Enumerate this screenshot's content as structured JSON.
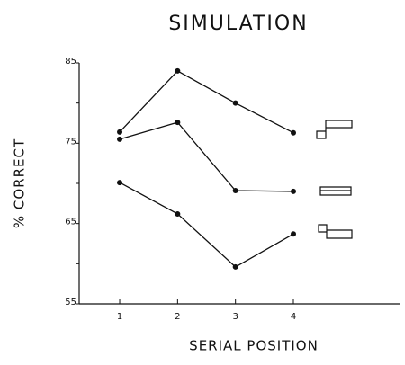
{
  "chart_data": {
    "type": "line",
    "title": "SIMULATION",
    "x_label": "SERIAL POSITION",
    "y_label": "% CORRECT",
    "x": [
      1,
      2,
      3,
      4
    ],
    "xlim": [
      0.3,
      5.85
    ],
    "xticks": [
      1,
      2,
      3,
      4
    ],
    "ylim": [
      55,
      85
    ],
    "yticks": [
      55,
      65,
      75,
      85
    ],
    "yminor": [
      60,
      70,
      80
    ],
    "grid": false,
    "series": [
      {
        "color": "#111111",
        "values": [
          76.4,
          84.0,
          80.0,
          76.3
        ]
      },
      {
        "color": "#111111",
        "values": [
          75.5,
          77.6,
          69.1,
          69.0
        ]
      },
      {
        "color": "#111111",
        "values": [
          70.1,
          66.2,
          59.6,
          63.7
        ]
      }
    ]
  }
}
